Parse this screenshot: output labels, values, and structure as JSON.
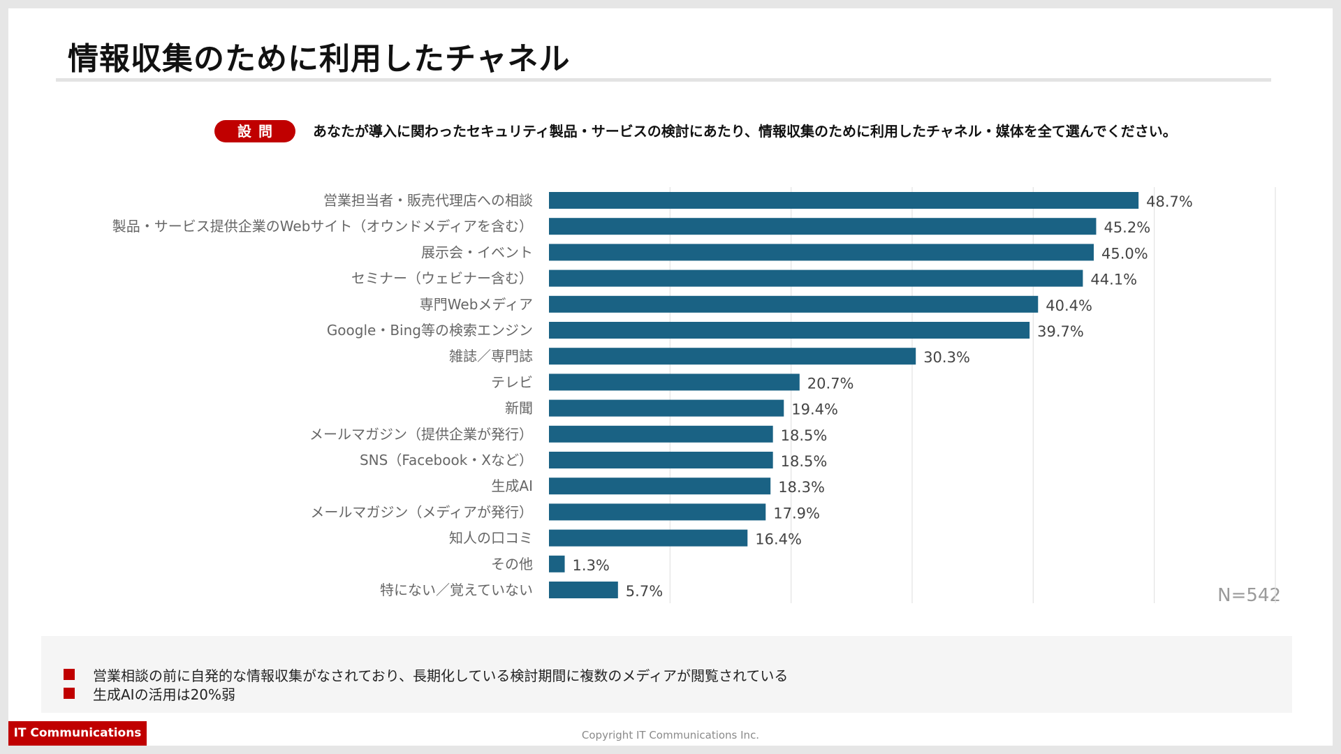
{
  "page": {
    "title": "情報収集のために利用したチャネル",
    "question_badge": "設問",
    "question_text": "あなたが導入に関わったセキュリティ製品・サービスの検討にあたり、情報収集のために利用したチャネル・媒体を全て選んでください。",
    "sample_size": "N=542",
    "summary": [
      "営業相談の前に自発的な情報収集がなされており、長期化している検討期間に複数のメディアが閲覧されている",
      "生成AIの活用は20%弱"
    ],
    "footer_logo": "IT Communications",
    "copyright": "Copyright IT Communications Inc."
  },
  "colors": {
    "bar": "#1a6284",
    "accent": "#c00000",
    "grid": "#e2e2e2",
    "label": "#666666",
    "value": "#444444"
  },
  "chart_data": {
    "type": "bar",
    "orientation": "horizontal",
    "categories": [
      "営業担当者・販売代理店への相談",
      "製品・サービス提供企業のWebサイト（オウンドメディアを含む）",
      "展示会・イベント",
      "セミナー（ウェビナー含む）",
      "専門Webメディア",
      "Google・Bing等の検索エンジン",
      "雑誌／専門誌",
      "テレビ",
      "新聞",
      "メールマガジン（提供企業が発行）",
      "SNS（Facebook・Xなど）",
      "生成AI",
      "メールマガジン（メディアが発行）",
      "知人の口コミ",
      "その他",
      "特にない／覚えていない"
    ],
    "values": [
      48.7,
      45.2,
      45.0,
      44.1,
      40.4,
      39.7,
      30.3,
      20.7,
      19.4,
      18.5,
      18.5,
      18.3,
      17.9,
      16.4,
      1.3,
      5.7
    ],
    "value_labels": [
      "48.7%",
      "45.2%",
      "45.0%",
      "44.1%",
      "40.4%",
      "39.7%",
      "30.3%",
      "20.7%",
      "19.4%",
      "18.5%",
      "18.5%",
      "18.3%",
      "17.9%",
      "16.4%",
      "1.3%",
      "5.7%"
    ],
    "xlim": [
      0,
      60
    ],
    "grid": true,
    "legend": "none"
  }
}
